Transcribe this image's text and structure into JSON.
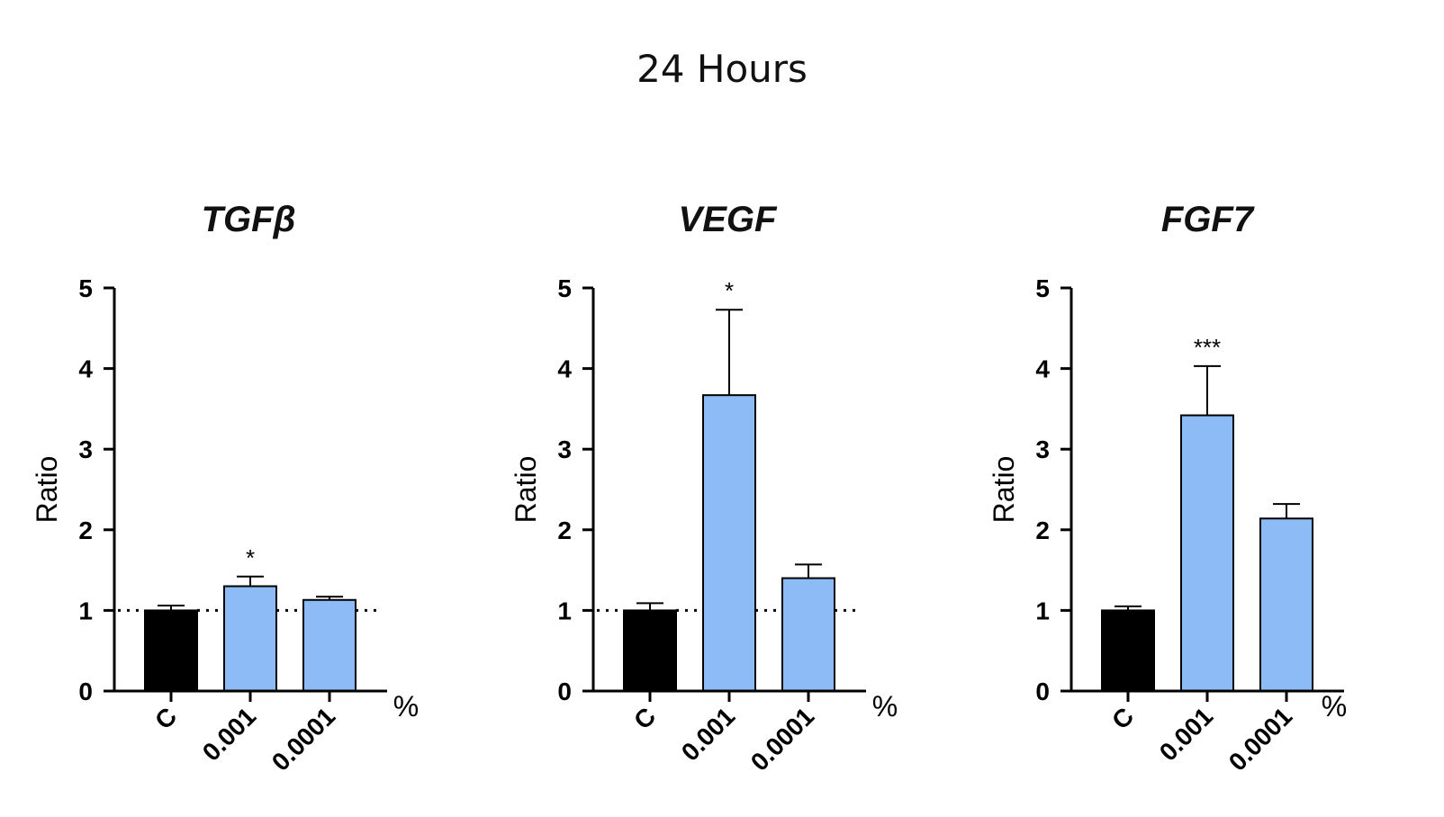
{
  "figure": {
    "title": "24 Hours"
  },
  "colors": {
    "control": "#000000",
    "treatment": "#8dbbf5",
    "outline": "#000000"
  },
  "chart_data": [
    {
      "type": "bar",
      "title": "TGFβ",
      "ylabel": "Ratio",
      "xunit": "%",
      "ylim": [
        0,
        5
      ],
      "yticks": [
        "0",
        "1",
        "2",
        "3",
        "4",
        "5"
      ],
      "categories": [
        "C",
        "0.001",
        "0.0001"
      ],
      "values": [
        1.0,
        1.3,
        1.13
      ],
      "errors": [
        0.06,
        0.12,
        0.04
      ],
      "significance": [
        "",
        "*",
        ""
      ],
      "reference_line": 1,
      "bar_colors": [
        "control",
        "treatment",
        "treatment"
      ]
    },
    {
      "type": "bar",
      "title": "VEGF",
      "ylabel": "Ratio",
      "xunit": "%",
      "ylim": [
        0,
        5
      ],
      "yticks": [
        "0",
        "1",
        "2",
        "3",
        "4",
        "5"
      ],
      "categories": [
        "C",
        "0.001",
        "0.0001"
      ],
      "values": [
        1.0,
        3.67,
        1.4
      ],
      "errors": [
        0.09,
        1.06,
        0.17
      ],
      "significance": [
        "",
        "*",
        ""
      ],
      "reference_line": 1,
      "bar_colors": [
        "control",
        "treatment",
        "treatment"
      ]
    },
    {
      "type": "bar",
      "title": "FGF7",
      "ylabel": "Ratio",
      "xunit": "%",
      "ylim": [
        0,
        5
      ],
      "yticks": [
        "0",
        "1",
        "2",
        "3",
        "4",
        "5"
      ],
      "categories": [
        "C",
        "0.001",
        "0.0001"
      ],
      "values": [
        1.0,
        3.42,
        2.14
      ],
      "errors": [
        0.05,
        0.61,
        0.18
      ],
      "significance": [
        "",
        "***",
        ""
      ],
      "reference_line": null,
      "bar_colors": [
        "control",
        "treatment",
        "treatment"
      ]
    }
  ]
}
